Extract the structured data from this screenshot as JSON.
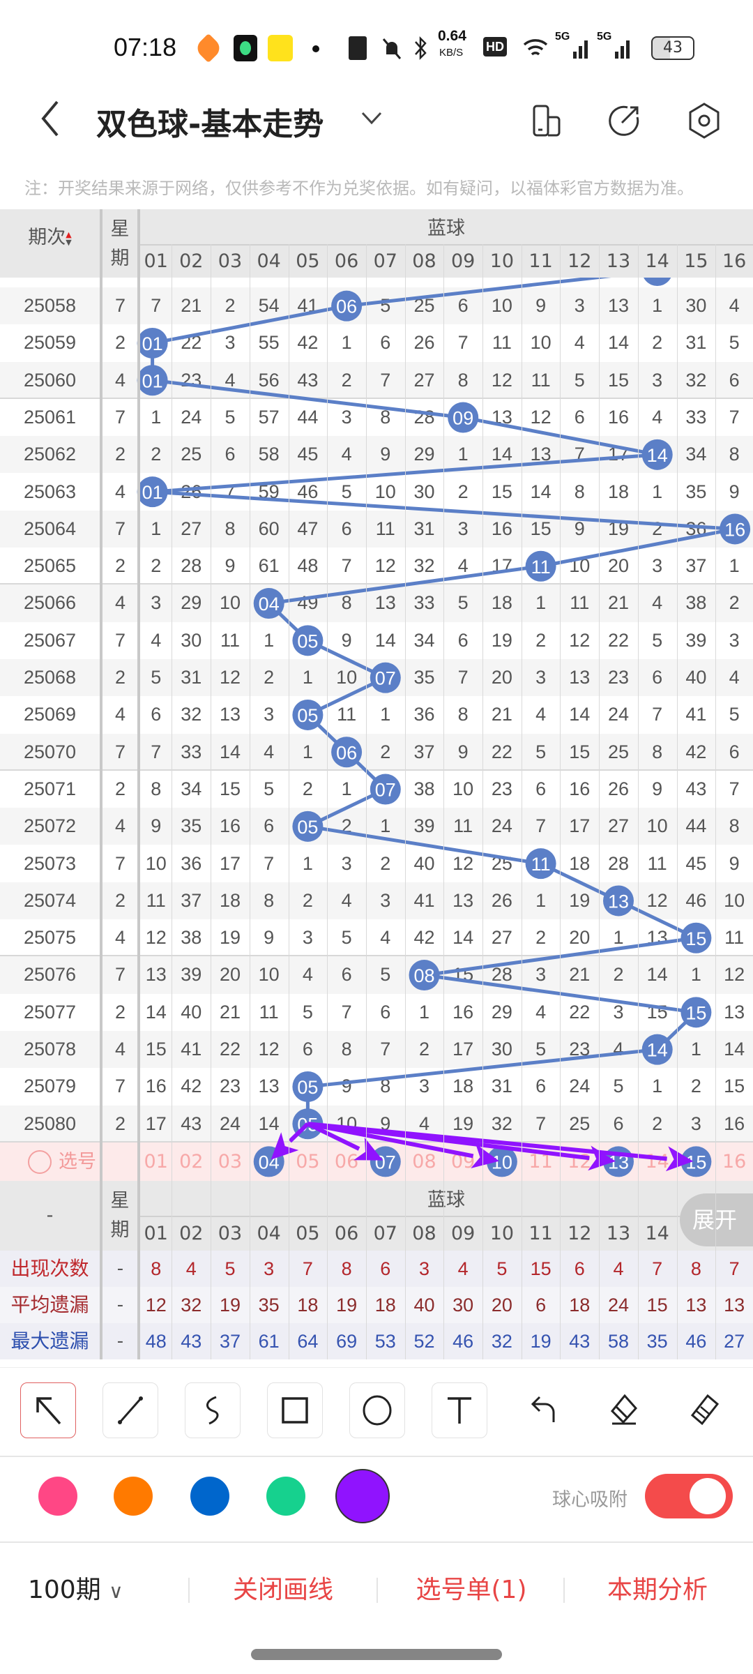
{
  "status_bar": {
    "time": "07:18",
    "net_speed": "0.64",
    "net_unit": "KB/S",
    "hd": "HD",
    "signal1": "5G",
    "signal2": "5G",
    "battery": "43"
  },
  "header": {
    "title": "双色球-基本走势",
    "back_icon": "back-arrow-icon",
    "icons": [
      "phone-rotate-icon",
      "share-icon",
      "settings-hex-icon"
    ]
  },
  "notice": "注：开奖结果来源于网络，仅供参考不作为兑奖依据。如有疑问，以福体彩官方数据为准。",
  "table": {
    "col_period": "期次",
    "col_week": "星期",
    "group_label": "蓝球",
    "columns": [
      "01",
      "02",
      "03",
      "04",
      "05",
      "06",
      "07",
      "08",
      "09",
      "10",
      "11",
      "12",
      "13",
      "14",
      "15",
      "16"
    ],
    "ball_color": "#5b7fc7",
    "partial_top_ball": "14",
    "rows": [
      {
        "period": "25058",
        "week": "7",
        "cells": [
          "7",
          "21",
          "2",
          "54",
          "41",
          "06",
          "5",
          "25",
          "6",
          "10",
          "9",
          "3",
          "13",
          "1",
          "30",
          "4"
        ],
        "ball": "06"
      },
      {
        "period": "25059",
        "week": "2",
        "cells": [
          "01",
          "22",
          "3",
          "55",
          "42",
          "1",
          "6",
          "26",
          "7",
          "11",
          "10",
          "4",
          "14",
          "2",
          "31",
          "5"
        ],
        "ball": "01"
      },
      {
        "period": "25060",
        "week": "4",
        "cells": [
          "01",
          "23",
          "4",
          "56",
          "43",
          "2",
          "7",
          "27",
          "8",
          "12",
          "11",
          "5",
          "15",
          "3",
          "32",
          "6"
        ],
        "ball": "01"
      },
      {
        "period": "25061",
        "week": "7",
        "cells": [
          "1",
          "24",
          "5",
          "57",
          "44",
          "3",
          "8",
          "28",
          "09",
          "13",
          "12",
          "6",
          "16",
          "4",
          "33",
          "7"
        ],
        "ball": "09"
      },
      {
        "period": "25062",
        "week": "2",
        "cells": [
          "2",
          "25",
          "6",
          "58",
          "45",
          "4",
          "9",
          "29",
          "1",
          "14",
          "13",
          "7",
          "17",
          "14",
          "34",
          "8"
        ],
        "ball": "14"
      },
      {
        "period": "25063",
        "week": "4",
        "cells": [
          "01",
          "26",
          "7",
          "59",
          "46",
          "5",
          "10",
          "30",
          "2",
          "15",
          "14",
          "8",
          "18",
          "1",
          "35",
          "9"
        ],
        "ball": "01"
      },
      {
        "period": "25064",
        "week": "7",
        "cells": [
          "1",
          "27",
          "8",
          "60",
          "47",
          "6",
          "11",
          "31",
          "3",
          "16",
          "15",
          "9",
          "19",
          "2",
          "36",
          "16"
        ],
        "ball": "16"
      },
      {
        "period": "25065",
        "week": "2",
        "cells": [
          "2",
          "28",
          "9",
          "61",
          "48",
          "7",
          "12",
          "32",
          "4",
          "17",
          "11",
          "10",
          "20",
          "3",
          "37",
          "1"
        ],
        "ball": "11"
      },
      {
        "period": "25066",
        "week": "4",
        "cells": [
          "3",
          "29",
          "10",
          "04",
          "49",
          "8",
          "13",
          "33",
          "5",
          "18",
          "1",
          "11",
          "21",
          "4",
          "38",
          "2"
        ],
        "ball": "04"
      },
      {
        "period": "25067",
        "week": "7",
        "cells": [
          "4",
          "30",
          "11",
          "1",
          "05",
          "9",
          "14",
          "34",
          "6",
          "19",
          "2",
          "12",
          "22",
          "5",
          "39",
          "3"
        ],
        "ball": "05"
      },
      {
        "period": "25068",
        "week": "2",
        "cells": [
          "5",
          "31",
          "12",
          "2",
          "1",
          "10",
          "07",
          "35",
          "7",
          "20",
          "3",
          "13",
          "23",
          "6",
          "40",
          "4"
        ],
        "ball": "07"
      },
      {
        "period": "25069",
        "week": "4",
        "cells": [
          "6",
          "32",
          "13",
          "3",
          "05",
          "11",
          "1",
          "36",
          "8",
          "21",
          "4",
          "14",
          "24",
          "7",
          "41",
          "5"
        ],
        "ball": "05"
      },
      {
        "period": "25070",
        "week": "7",
        "cells": [
          "7",
          "33",
          "14",
          "4",
          "1",
          "06",
          "2",
          "37",
          "9",
          "22",
          "5",
          "15",
          "25",
          "8",
          "42",
          "6"
        ],
        "ball": "06"
      },
      {
        "period": "25071",
        "week": "2",
        "cells": [
          "8",
          "34",
          "15",
          "5",
          "2",
          "1",
          "07",
          "38",
          "10",
          "23",
          "6",
          "16",
          "26",
          "9",
          "43",
          "7"
        ],
        "ball": "07"
      },
      {
        "period": "25072",
        "week": "4",
        "cells": [
          "9",
          "35",
          "16",
          "6",
          "05",
          "2",
          "1",
          "39",
          "11",
          "24",
          "7",
          "17",
          "27",
          "10",
          "44",
          "8"
        ],
        "ball": "05"
      },
      {
        "period": "25073",
        "week": "7",
        "cells": [
          "10",
          "36",
          "17",
          "7",
          "1",
          "3",
          "2",
          "40",
          "12",
          "25",
          "11",
          "18",
          "28",
          "11",
          "45",
          "9"
        ],
        "ball": "11"
      },
      {
        "period": "25074",
        "week": "2",
        "cells": [
          "11",
          "37",
          "18",
          "8",
          "2",
          "4",
          "3",
          "41",
          "13",
          "26",
          "1",
          "19",
          "13",
          "12",
          "46",
          "10"
        ],
        "ball": "13"
      },
      {
        "period": "25075",
        "week": "4",
        "cells": [
          "12",
          "38",
          "19",
          "9",
          "3",
          "5",
          "4",
          "42",
          "14",
          "27",
          "2",
          "20",
          "1",
          "13",
          "15",
          "11"
        ],
        "ball": "15"
      },
      {
        "period": "25076",
        "week": "7",
        "cells": [
          "13",
          "39",
          "20",
          "10",
          "4",
          "6",
          "5",
          "08",
          "15",
          "28",
          "3",
          "21",
          "2",
          "14",
          "1",
          "12"
        ],
        "ball": "08"
      },
      {
        "period": "25077",
        "week": "2",
        "cells": [
          "14",
          "40",
          "21",
          "11",
          "5",
          "7",
          "6",
          "1",
          "16",
          "29",
          "4",
          "22",
          "3",
          "15",
          "15",
          "13"
        ],
        "ball": "15"
      },
      {
        "period": "25078",
        "week": "4",
        "cells": [
          "15",
          "41",
          "22",
          "12",
          "6",
          "8",
          "7",
          "2",
          "17",
          "30",
          "5",
          "23",
          "4",
          "14",
          "1",
          "14"
        ],
        "ball": "14"
      },
      {
        "period": "25079",
        "week": "7",
        "cells": [
          "16",
          "42",
          "23",
          "13",
          "05",
          "9",
          "8",
          "3",
          "18",
          "31",
          "6",
          "24",
          "5",
          "1",
          "2",
          "15"
        ],
        "ball": "05"
      },
      {
        "period": "25080",
        "week": "2",
        "cells": [
          "17",
          "43",
          "24",
          "14",
          "05",
          "10",
          "9",
          "4",
          "19",
          "32",
          "7",
          "25",
          "6",
          "2",
          "3",
          "16"
        ],
        "ball": "05"
      }
    ],
    "select_row": {
      "label": "选号",
      "selected": [
        "04",
        "07",
        "10",
        "13",
        "15"
      ]
    },
    "drawn_arrows": {
      "color": "#9013fe",
      "from_period": "25080",
      "from_ball": "05",
      "to": [
        "04",
        "07",
        "10",
        "13",
        "15"
      ]
    },
    "footer_period_label": "-",
    "expand_button": "展开",
    "stats": [
      {
        "label": "出现次数",
        "dash": "-",
        "values": [
          "8",
          "4",
          "5",
          "3",
          "7",
          "8",
          "6",
          "3",
          "4",
          "5",
          "15",
          "6",
          "4",
          "7",
          "8",
          "7"
        ],
        "label_color": "#c0282d",
        "value_color": "#b3262b"
      },
      {
        "label": "平均遗漏",
        "dash": "-",
        "values": [
          "12",
          "32",
          "19",
          "35",
          "18",
          "19",
          "18",
          "40",
          "30",
          "20",
          "6",
          "18",
          "24",
          "15",
          "13",
          "13"
        ],
        "label_color": "#a42a2e",
        "value_color": "#8b2c2c"
      },
      {
        "label": "最大遗漏",
        "dash": "-",
        "values": [
          "48",
          "43",
          "37",
          "61",
          "64",
          "69",
          "53",
          "52",
          "46",
          "32",
          "19",
          "43",
          "58",
          "35",
          "46",
          "27"
        ],
        "label_color": "#2d4fae",
        "value_color": "#3553b0"
      }
    ]
  },
  "draw_tools": {
    "tools": [
      "arrow-tool-icon",
      "line-tool-icon",
      "freehand-tool-icon",
      "rectangle-tool-icon",
      "circle-tool-icon",
      "text-tool-icon"
    ],
    "selected_tool": "arrow-tool-icon",
    "actions": [
      "undo-icon",
      "eraser-icon",
      "clear-brush-icon"
    ],
    "colors": [
      "#ff4785",
      "#ff7a00",
      "#0066cc",
      "#16d18e",
      "#9013fe"
    ],
    "selected_color": "#9013fe",
    "snap_label": "球心吸附",
    "snap_on": true
  },
  "bottom_bar": {
    "periods": "100期",
    "close_draw": "关闭画线",
    "pick_list": "选号单(1)",
    "analysis": "本期分析"
  }
}
